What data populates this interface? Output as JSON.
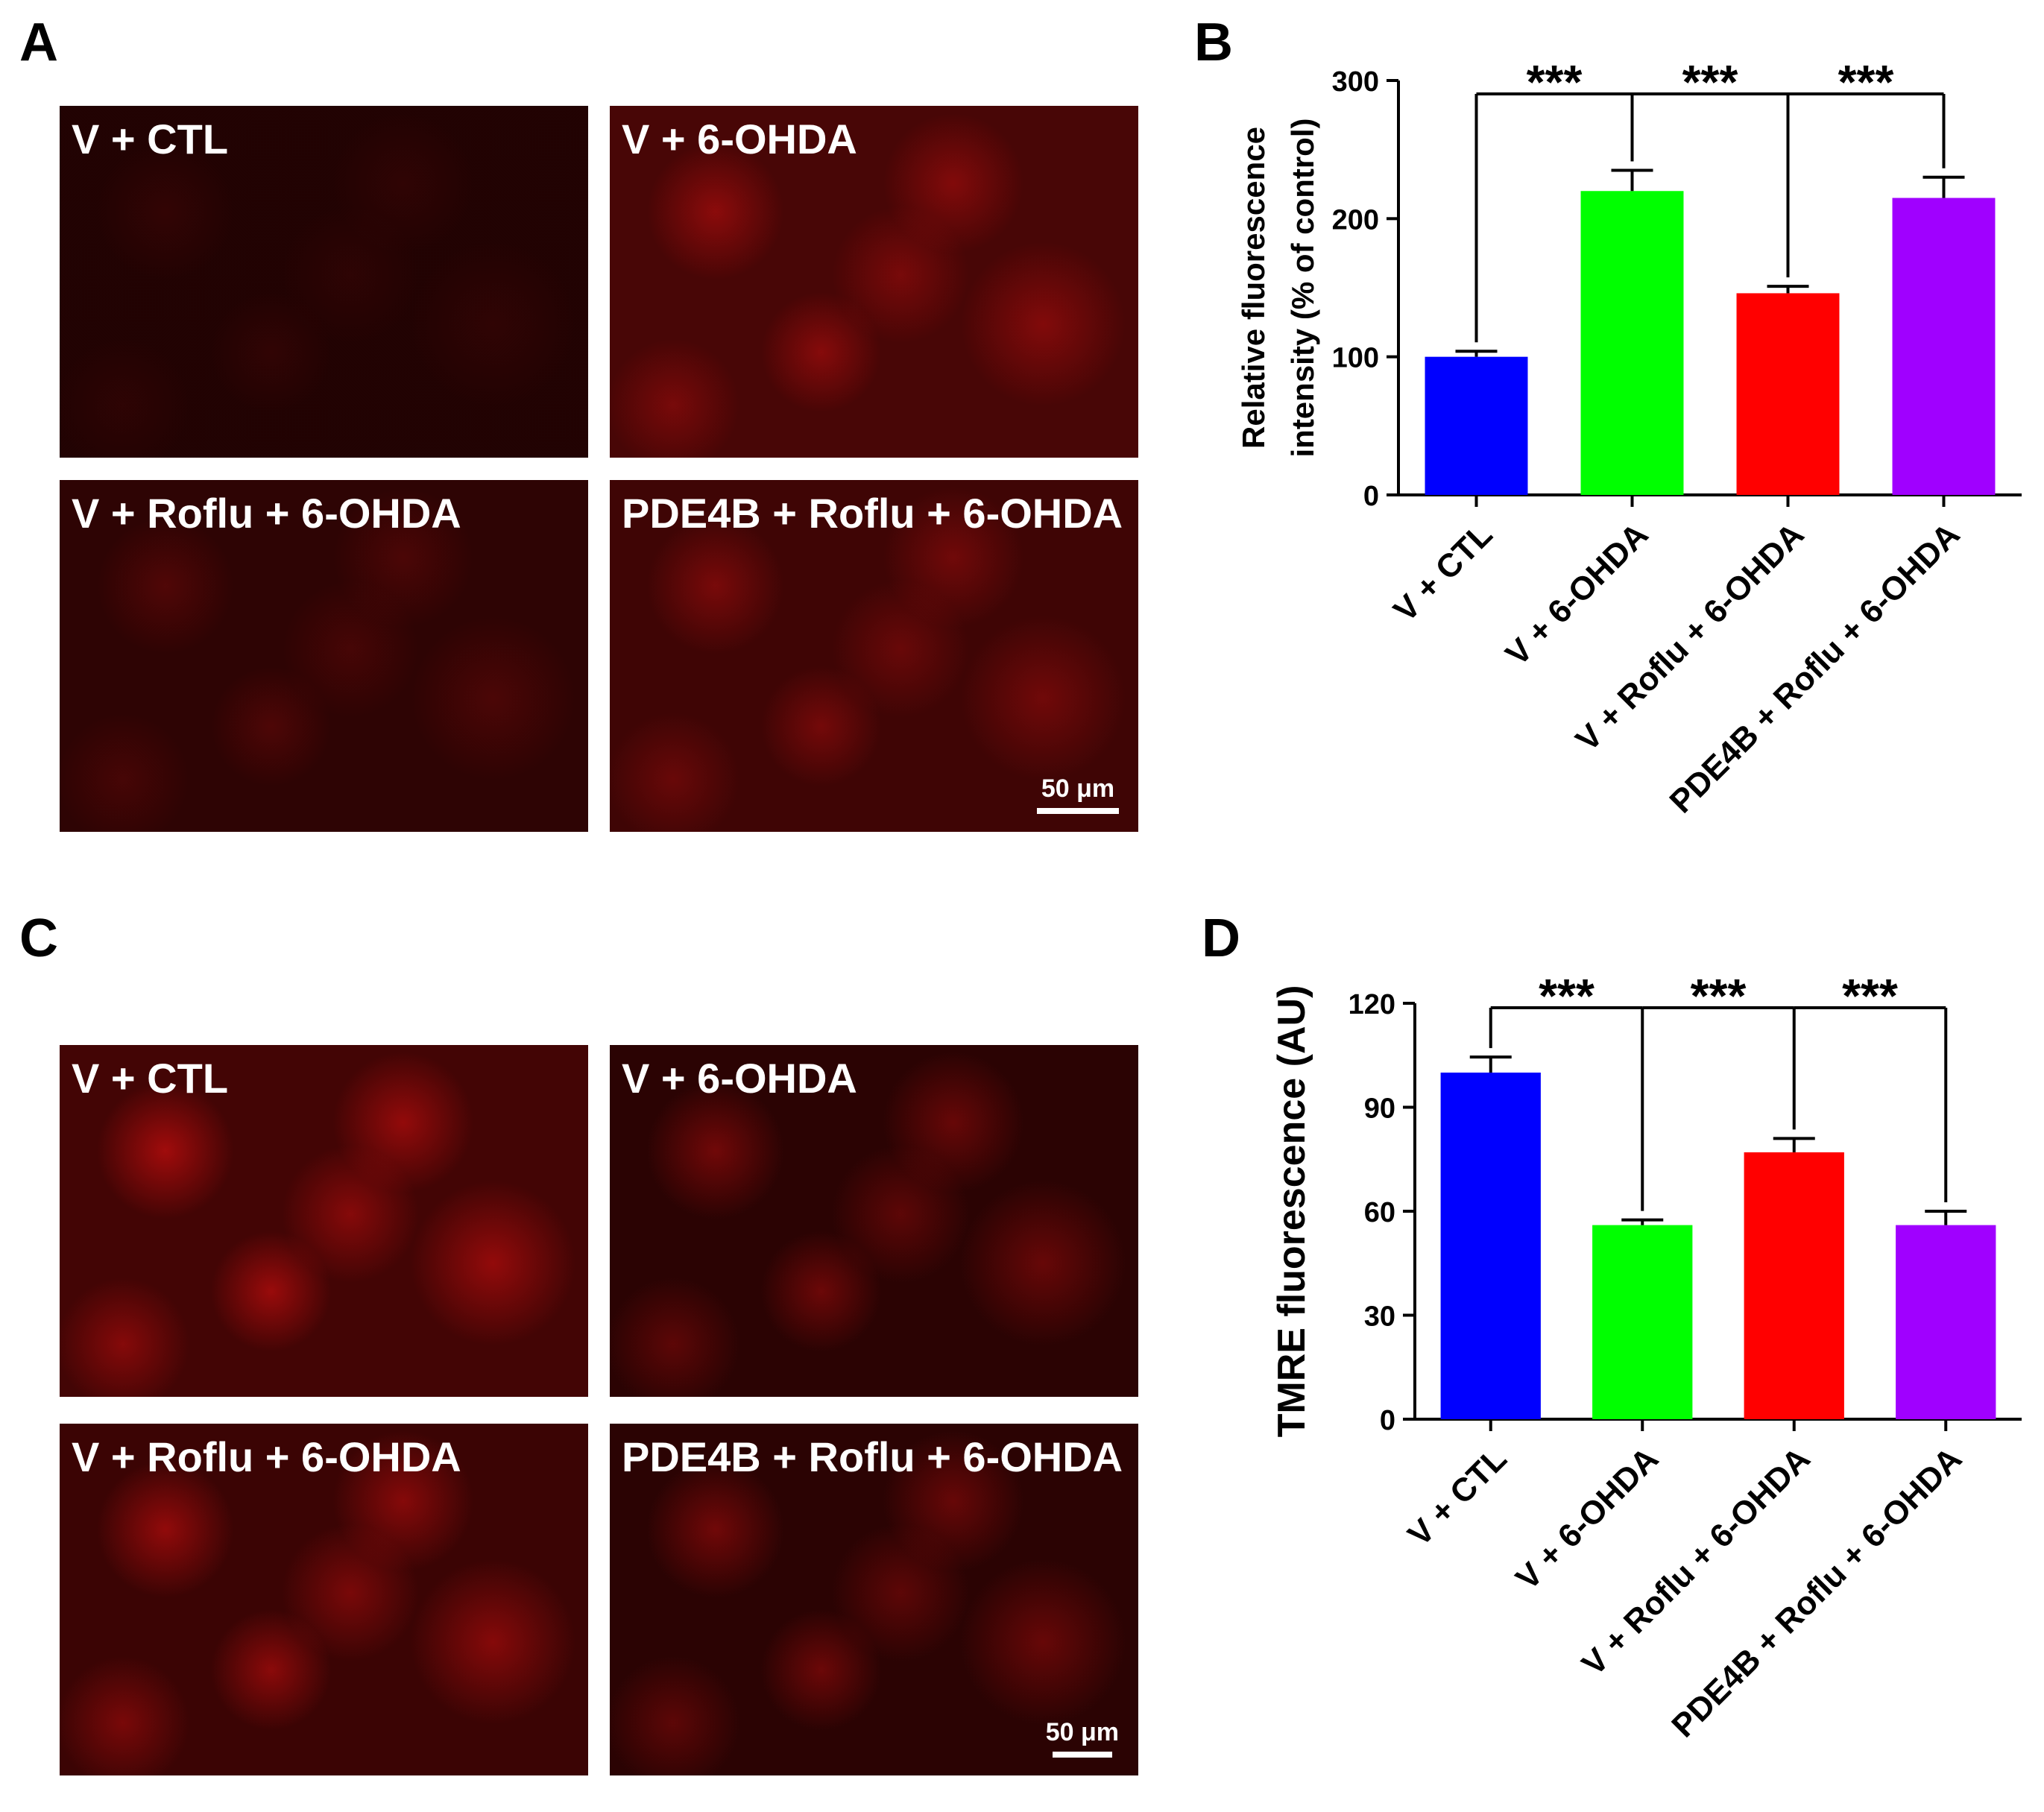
{
  "panels": {
    "A": {
      "letter": "A",
      "images": [
        {
          "label": "V + CTL",
          "glow": 0.14
        },
        {
          "label": "V + 6-OHDA",
          "glow": 0.75
        },
        {
          "label": "V + Roflu + 6-OHDA",
          "glow": 0.32
        },
        {
          "label": "PDE4B + Roflu + 6-OHDA",
          "glow": 0.6
        }
      ],
      "scale_bar": "50 μm",
      "tint_color": "#c81010",
      "bg_color": "#1a0202"
    },
    "C": {
      "letter": "C",
      "images": [
        {
          "label": "V + CTL",
          "glow": 0.85
        },
        {
          "label": "V + 6-OHDA",
          "glow": 0.55
        },
        {
          "label": "V + Roflu + 6-OHDA",
          "glow": 0.75
        },
        {
          "label": "PDE4B + Roflu + 6-OHDA",
          "glow": 0.55
        }
      ],
      "scale_bar": "50 μm",
      "tint_color": "#e01010",
      "bg_color": "#000000"
    },
    "B": {
      "letter": "B"
    },
    "D": {
      "letter": "D"
    }
  },
  "chart_data": [
    {
      "id": "B",
      "type": "bar",
      "title": "",
      "ylabel": [
        "Relative fluorescence",
        "intensity (% of control)"
      ],
      "xlabel": "",
      "categories": [
        "V + CTL",
        "V + 6-OHDA",
        "V + Roflu + 6-OHDA",
        "PDE4B + Roflu + 6-OHDA"
      ],
      "values": [
        100,
        220,
        146,
        215
      ],
      "errors": [
        4,
        15,
        5,
        15
      ],
      "colors": [
        "#0000ff",
        "#00ff00",
        "#ff0000",
        "#a000ff"
      ],
      "ylim": [
        0,
        300
      ],
      "yticks": [
        0,
        100,
        200,
        300
      ],
      "significance": [
        {
          "label": "***",
          "from": 0,
          "to": 1
        },
        {
          "label": "***",
          "from": 1,
          "to": 2
        },
        {
          "label": "***",
          "from": 2,
          "to": 3
        }
      ]
    },
    {
      "id": "D",
      "type": "bar",
      "title": "",
      "ylabel": [
        "TMRE fluorescence (AU)"
      ],
      "xlabel": "",
      "categories": [
        "V + CTL",
        "V + 6-OHDA",
        "V + Roflu + 6-OHDA",
        "PDE4B + Roflu + 6-OHDA"
      ],
      "values": [
        100,
        56,
        77,
        56
      ],
      "errors": [
        4.5,
        1.5,
        4,
        4
      ],
      "colors": [
        "#0000ff",
        "#00ff00",
        "#ff0000",
        "#a000ff"
      ],
      "ylim": [
        0,
        120
      ],
      "yticks": [
        0,
        30,
        60,
        90,
        120
      ],
      "significance": [
        {
          "label": "***",
          "from": 0,
          "to": 1
        },
        {
          "label": "***",
          "from": 1,
          "to": 2
        },
        {
          "label": "***",
          "from": 2,
          "to": 3
        }
      ]
    }
  ]
}
